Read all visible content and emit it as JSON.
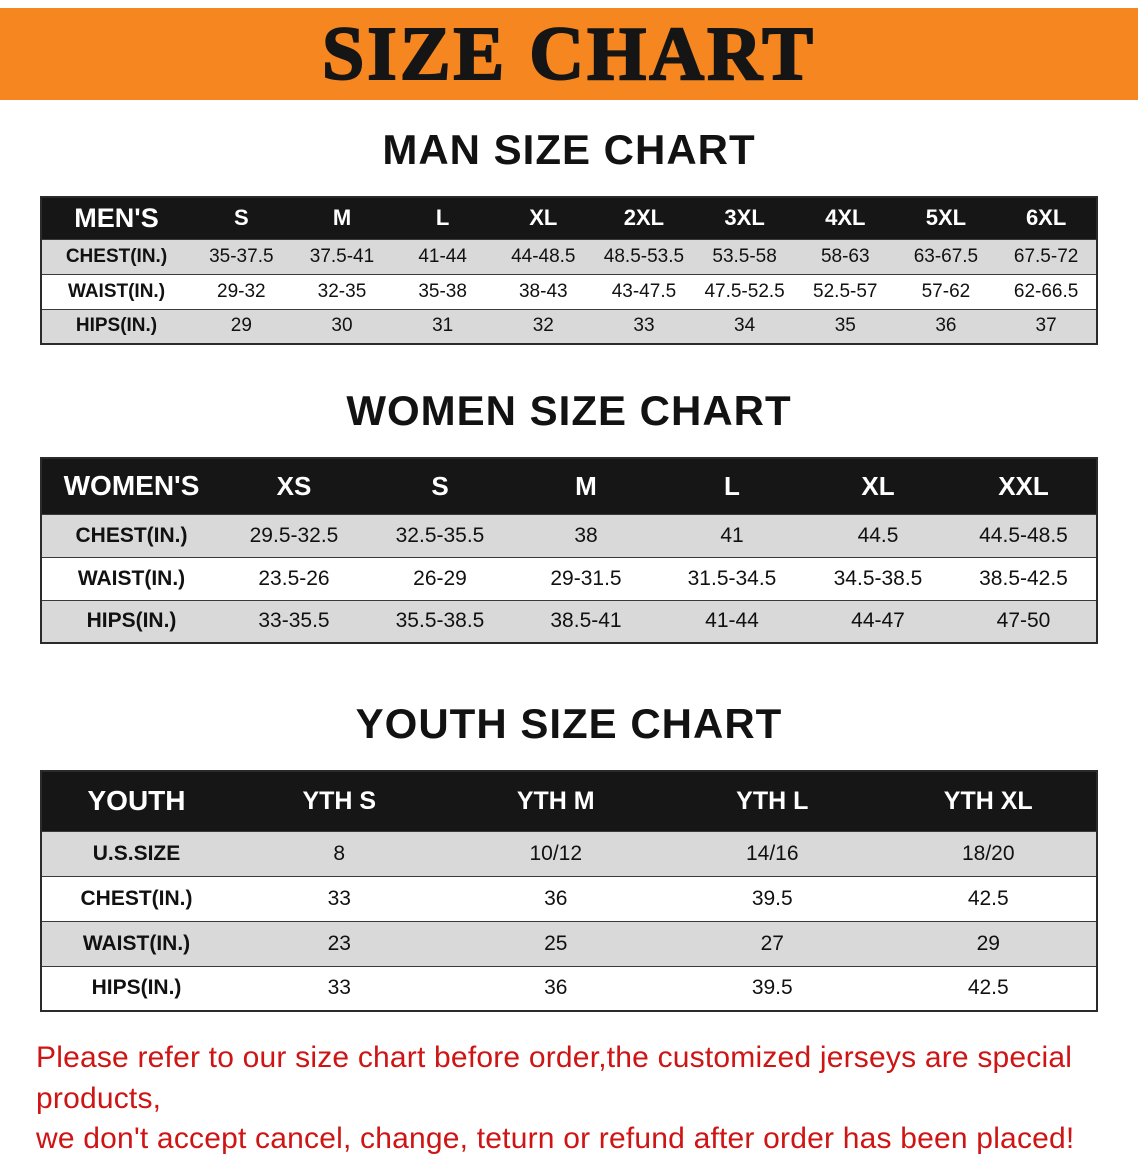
{
  "banner": {
    "title": "SIZE CHART",
    "bg_color": "#f6861f"
  },
  "sections": [
    {
      "heading": "MAN SIZE CHART",
      "table": {
        "header": [
          "MEN'S",
          "S",
          "M",
          "L",
          "XL",
          "2XL",
          "3XL",
          "4XL",
          "5XL",
          "6XL"
        ],
        "rows": [
          [
            "CHEST(IN.)",
            "35-37.5",
            "37.5-41",
            "41-44",
            "44-48.5",
            "48.5-53.5",
            "53.5-58",
            "58-63",
            "63-67.5",
            "67.5-72"
          ],
          [
            "WAIST(IN.)",
            "29-32",
            "32-35",
            "35-38",
            "38-43",
            "43-47.5",
            "47.5-52.5",
            "52.5-57",
            "57-62",
            "62-66.5"
          ],
          [
            "HIPS(IN.)",
            "29",
            "30",
            "31",
            "32",
            "33",
            "34",
            "35",
            "36",
            "37"
          ]
        ]
      }
    },
    {
      "heading": "WOMEN SIZE CHART",
      "table": {
        "header": [
          "WOMEN'S",
          "XS",
          "S",
          "M",
          "L",
          "XL",
          "XXL"
        ],
        "rows": [
          [
            "CHEST(IN.)",
            "29.5-32.5",
            "32.5-35.5",
            "38",
            "41",
            "44.5",
            "44.5-48.5"
          ],
          [
            "WAIST(IN.)",
            "23.5-26",
            "26-29",
            "29-31.5",
            "31.5-34.5",
            "34.5-38.5",
            "38.5-42.5"
          ],
          [
            "HIPS(IN.)",
            "33-35.5",
            "35.5-38.5",
            "38.5-41",
            "41-44",
            "44-47",
            "47-50"
          ]
        ]
      }
    },
    {
      "heading": "YOUTH SIZE CHART",
      "table": {
        "header": [
          "YOUTH",
          "YTH S",
          "YTH M",
          "YTH L",
          "YTH XL"
        ],
        "rows": [
          [
            "U.S.SIZE",
            "8",
            "10/12",
            "14/16",
            "18/20"
          ],
          [
            "CHEST(IN.)",
            "33",
            "36",
            "39.5",
            "42.5"
          ],
          [
            "WAIST(IN.)",
            "23",
            "25",
            "27",
            "29"
          ],
          [
            "HIPS(IN.)",
            "33",
            "36",
            "39.5",
            "42.5"
          ]
        ]
      }
    }
  ],
  "disclaimer": {
    "line1": "Please refer to our size chart before order,the customized jerseys are special products,",
    "line2": "we don't accept cancel, change, teturn or refund after order has been placed!",
    "color": "#cf1414"
  }
}
